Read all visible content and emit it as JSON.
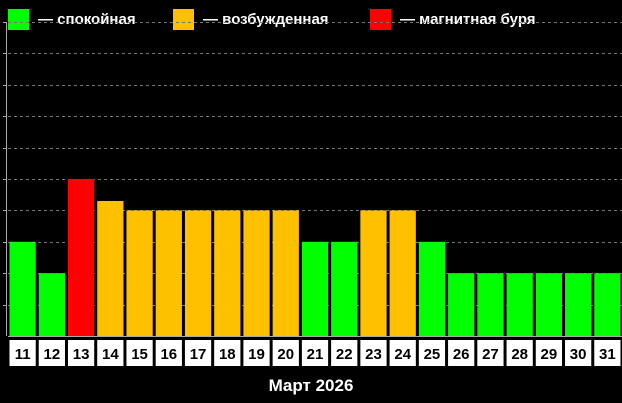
{
  "legend": [
    {
      "color": "#00ff00",
      "label": "— спокойная"
    },
    {
      "color": "#ffc000",
      "label": "— возбужденная"
    },
    {
      "color": "#ff0000",
      "label": "— магнитная буря"
    }
  ],
  "chart_data": {
    "type": "bar",
    "xlabel": "Март 2026",
    "ylabel": "",
    "ylim": [
      0,
      10
    ],
    "grid": true,
    "legend_position": "top",
    "categories": [
      "11",
      "12",
      "13",
      "14",
      "15",
      "16",
      "17",
      "18",
      "19",
      "20",
      "21",
      "22",
      "23",
      "24",
      "25",
      "26",
      "27",
      "28",
      "29",
      "30",
      "31"
    ],
    "values": [
      3,
      2,
      5,
      4.3,
      4,
      4,
      4,
      4,
      4,
      4,
      3,
      3,
      4,
      4,
      3,
      2,
      2,
      2,
      2,
      2,
      2
    ],
    "levels": [
      "calm",
      "calm",
      "storm",
      "excited",
      "excited",
      "excited",
      "excited",
      "excited",
      "excited",
      "excited",
      "calm",
      "calm",
      "excited",
      "excited",
      "calm",
      "calm",
      "calm",
      "calm",
      "calm",
      "calm",
      "calm"
    ],
    "level_colors": {
      "calm": "#00ff00",
      "excited": "#ffc000",
      "storm": "#ff0000"
    }
  }
}
